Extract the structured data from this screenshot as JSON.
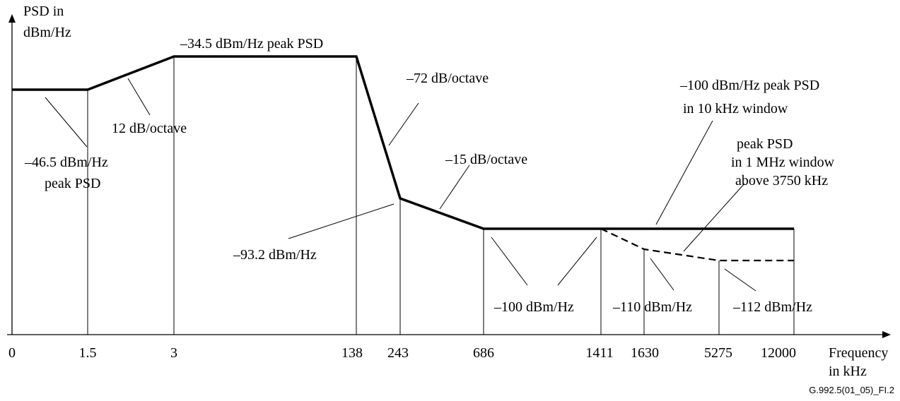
{
  "y_axis_label": [
    "PSD in",
    "dBm/Hz"
  ],
  "x_axis_label": [
    "Frequency",
    "in kHz"
  ],
  "figure_id": "G.992.5(01_05)_FI.2",
  "frequency_ticks": [
    "0",
    "1.5",
    "3",
    "138",
    "243",
    "686",
    "1411",
    "1630",
    "5275",
    "12000"
  ],
  "annotations": {
    "peak_34_5": "–34.5 dBm/Hz peak PSD",
    "slope_12": "12 dB/octave",
    "floor_46_5": [
      "–46.5 dBm/Hz",
      "peak PSD"
    ],
    "slope_72": "–72 dB/octave",
    "slope_15": "–15 dB/octave",
    "level_93_2": "–93.2 dBm/Hz",
    "peak_100": [
      "–100 dBm/Hz peak PSD",
      "in 10 kHz window"
    ],
    "peak_1mhz": [
      "peak PSD",
      "in 1 MHz window",
      "above 3750 kHz"
    ],
    "level_100": "–100 dBm/Hz",
    "level_110": "–110 dBm/Hz",
    "level_112": "–112 dBm/Hz"
  },
  "mask_breakpoints": [
    {
      "frequency": "0",
      "psd": "-46.5"
    },
    {
      "frequency": "1.5",
      "psd": "-46.5"
    },
    {
      "frequency": "3",
      "psd": "-34.5"
    },
    {
      "frequency": "138",
      "psd": "-34.5"
    },
    {
      "frequency": "243",
      "psd": "-93.2"
    },
    {
      "frequency": "686",
      "psd": "-100"
    },
    {
      "frequency": "12000",
      "psd": "-100"
    }
  ],
  "dashed_breakpoints": [
    {
      "frequency": "1411",
      "psd": "-100"
    },
    {
      "frequency": "1630",
      "psd": "-110"
    },
    {
      "frequency": "5275",
      "psd": "-112"
    },
    {
      "frequency": "12000",
      "psd": "-112"
    }
  ]
}
